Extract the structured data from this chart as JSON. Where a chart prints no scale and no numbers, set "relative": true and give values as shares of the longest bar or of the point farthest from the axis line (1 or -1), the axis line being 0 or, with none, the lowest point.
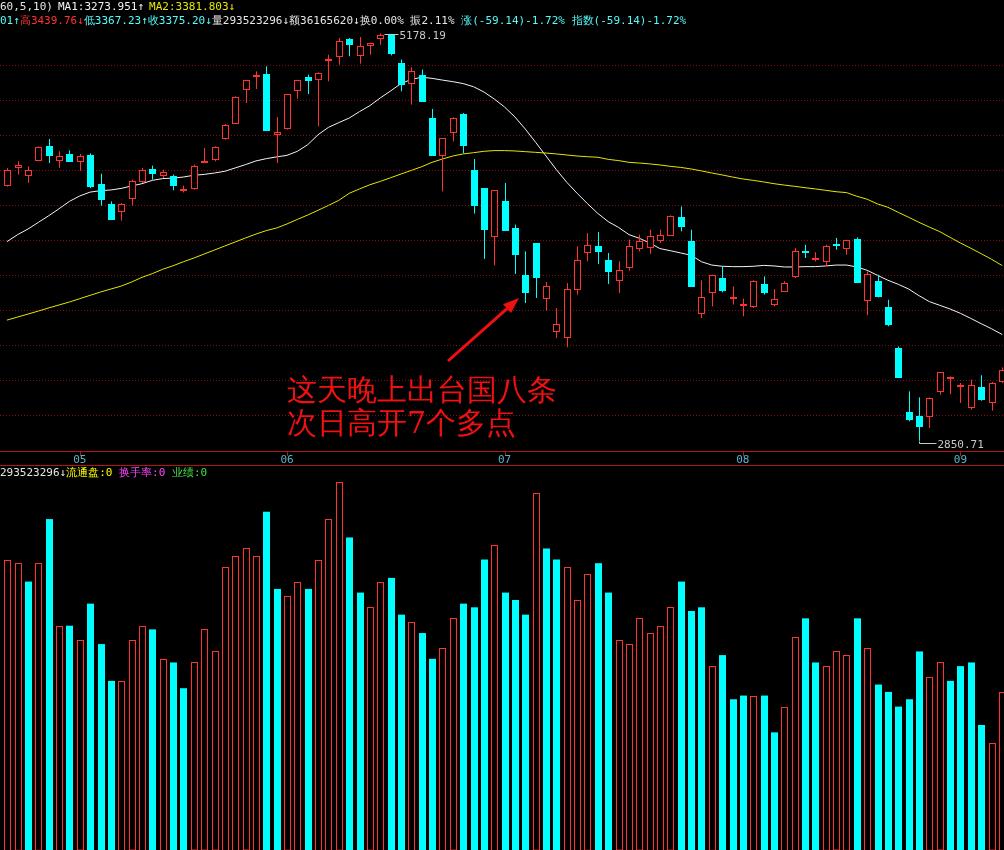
{
  "chart_data": [
    {
      "type": "candlestick",
      "legend_title": "60,5,10)",
      "subtitle": "01↑高3439.76↓低3367.23↑收3375.20↓量293523296↓额36165620↓换0.00% 振2.11% 涨(-59.14)-1.72% 指数(-59.14)-1.72%",
      "categories": [
        null,
        null,
        null,
        null,
        null,
        null,
        null,
        "05",
        null,
        null,
        null,
        null,
        null,
        null,
        null,
        null,
        null,
        null,
        null,
        null,
        null,
        null,
        null,
        null,
        null,
        null,
        null,
        "06",
        null,
        null,
        null,
        null,
        null,
        null,
        null,
        null,
        null,
        null,
        null,
        null,
        null,
        null,
        null,
        null,
        null,
        null,
        null,
        null,
        "07",
        null,
        null,
        null,
        null,
        null,
        null,
        null,
        null,
        null,
        null,
        null,
        null,
        null,
        null,
        null,
        null,
        null,
        null,
        null,
        null,
        null,
        null,
        "08",
        null,
        null,
        null,
        null,
        null,
        null,
        null,
        null,
        null,
        null,
        null,
        null,
        null,
        null,
        null,
        null,
        null,
        null,
        null,
        null,
        "09",
        null,
        null,
        null,
        null
      ],
      "ohlc": [
        [
          4314,
          4410,
          4303,
          4400
        ],
        [
          4418,
          4448,
          4372,
          4425
        ],
        [
          4368,
          4419,
          4324,
          4400
        ],
        [
          4453,
          4533,
          4451,
          4530
        ],
        [
          4533,
          4575,
          4438,
          4486
        ],
        [
          4453,
          4505,
          4410,
          4480
        ],
        [
          4490,
          4510,
          4448,
          4452
        ],
        [
          4448,
          4490,
          4394,
          4480
        ],
        [
          4484,
          4493,
          4295,
          4309
        ],
        [
          4318,
          4377,
          4194,
          4234
        ],
        [
          4206,
          4219,
          4112,
          4118
        ],
        [
          4162,
          4210,
          4109,
          4206
        ],
        [
          4238,
          4343,
          4194,
          4333
        ],
        [
          4333,
          4410,
          4324,
          4400
        ],
        [
          4406,
          4423,
          4343,
          4381
        ],
        [
          4371,
          4400,
          4352,
          4385
        ],
        [
          4366,
          4372,
          4282,
          4314
        ],
        [
          4286,
          4309,
          4270,
          4290
        ],
        [
          4293,
          4429,
          4286,
          4419
        ],
        [
          4442,
          4524,
          4442,
          4450
        ],
        [
          4461,
          4533,
          4448,
          4532
        ],
        [
          4581,
          4661,
          4571,
          4657
        ],
        [
          4667,
          4819,
          4661,
          4815
        ],
        [
          4861,
          4914,
          4781,
          4911
        ],
        [
          4933,
          4962,
          4861,
          4943
        ],
        [
          4947,
          4991,
          4625,
          4629
        ],
        [
          4606,
          4701,
          4438,
          4613
        ],
        [
          4638,
          4833,
          4629,
          4833
        ],
        [
          4853,
          4914,
          4806,
          4911
        ],
        [
          4929,
          4943,
          4832,
          4914
        ],
        [
          4920,
          4956,
          4648,
          4951
        ],
        [
          5024,
          5057,
          4905,
          5030
        ],
        [
          5052,
          5152,
          5000,
          5133
        ],
        [
          5147,
          5152,
          5048,
          5120
        ],
        [
          5054,
          5158,
          5006,
          5105
        ],
        [
          5114,
          5126,
          5057,
          5126
        ],
        [
          5152,
          5178.19,
          5114,
          5171
        ],
        [
          5175,
          5176,
          5053,
          5067
        ],
        [
          5010,
          5029,
          4848,
          4892
        ],
        [
          4895,
          4985,
          4772,
          4966
        ],
        [
          4943,
          4972,
          4787,
          4791
        ],
        [
          4695,
          4747,
          4482,
          4486
        ],
        [
          4486,
          4581,
          4276,
          4581
        ],
        [
          4615,
          4699,
          4562,
          4695
        ],
        [
          4718,
          4724,
          4495,
          4539
        ],
        [
          4400,
          4461,
          4149,
          4200
        ],
        [
          4295,
          4295,
          3890,
          4063
        ],
        [
          4019,
          4282,
          3853,
          4282
        ],
        [
          4219,
          4324,
          4051,
          4057
        ],
        [
          4066,
          4086,
          3804,
          3918
        ],
        [
          3796,
          3933,
          3638,
          3699
        ],
        [
          3981,
          3981,
          3667,
          3785
        ],
        [
          3667,
          3758,
          3594,
          3737
        ],
        [
          3480,
          3610,
          3438,
          3518
        ],
        [
          3442,
          3752,
          3385,
          3718
        ],
        [
          3720,
          3962,
          3686,
          3882
        ],
        [
          3930,
          4038,
          3876,
          3971
        ],
        [
          3962,
          4044,
          3861,
          3933
        ],
        [
          3882,
          3924,
          3747,
          3819
        ],
        [
          3768,
          3876,
          3695,
          3829
        ],
        [
          3842,
          4000,
          3823,
          3962
        ],
        [
          3952,
          4029,
          3933,
          3994
        ],
        [
          3956,
          4057,
          3918,
          4023
        ],
        [
          4000,
          4057,
          3981,
          4029
        ],
        [
          4029,
          4139,
          4025,
          4133
        ],
        [
          4130,
          4190,
          4048,
          4076
        ],
        [
          3990,
          4057,
          3733,
          3737
        ],
        [
          3581,
          3768,
          3552,
          3670
        ],
        [
          3699,
          3800,
          3619,
          3796
        ],
        [
          3781,
          3848,
          3699,
          3714
        ],
        [
          3664,
          3733,
          3629,
          3671
        ],
        [
          3627,
          3663,
          3562,
          3630
        ],
        [
          3623,
          3768,
          3610,
          3762
        ],
        [
          3749,
          3790,
          3686,
          3701
        ],
        [
          3632,
          3718,
          3619,
          3663
        ],
        [
          3705,
          3762,
          3701,
          3752
        ],
        [
          3790,
          3952,
          3781,
          3933
        ],
        [
          3937,
          3971,
          3895,
          3933
        ],
        [
          3892,
          3929,
          3876,
          3896
        ],
        [
          3876,
          3971,
          3848,
          3962
        ],
        [
          3976,
          4010,
          3943,
          3973
        ],
        [
          3952,
          4000,
          3914,
          3996
        ],
        [
          4004,
          4013,
          3752,
          3758
        ],
        [
          3657,
          3819,
          3568,
          3806
        ],
        [
          3762,
          3800,
          3670,
          3676
        ],
        [
          3615,
          3657,
          3505,
          3520
        ],
        [
          3381,
          3390,
          3209,
          3215
        ],
        [
          3013,
          3133,
          2962,
          2977
        ],
        [
          2994,
          3099,
          2850.71,
          2933
        ],
        [
          2990,
          3099,
          2924,
          3095
        ],
        [
          3137,
          3242,
          3114,
          3242
        ],
        [
          3210,
          3219,
          3118,
          3215
        ],
        [
          3168,
          3181,
          3067,
          3172
        ],
        [
          3042,
          3200,
          3029,
          3168
        ],
        [
          3156,
          3225,
          3080,
          3091
        ],
        [
          3072,
          3187,
          3023,
          3181
        ],
        [
          3190,
          3270,
          3181,
          3257
        ]
      ],
      "colors": [
        "#ff3232",
        "#ff3232",
        "#ff3232",
        "#ff3232",
        "#00ffff",
        "#ff3232",
        "#00ffff",
        "#ff3232",
        "#00ffff",
        "#00ffff",
        "#00ffff",
        "#ff3232",
        "#ff3232",
        "#ff3232",
        "#00ffff",
        "#ff3232",
        "#00ffff",
        "#ff3232",
        "#ff3232",
        "#ff3232",
        "#ff3232",
        "#ff3232",
        "#ff3232",
        "#ff3232",
        "#ff3232",
        "#00ffff",
        "#ff3232",
        "#ff3232",
        "#ff3232",
        "#00ffff",
        "#ff3232",
        "#ff3232",
        "#ff3232",
        "#00ffff",
        "#ff3232",
        "#ff3232",
        "#ff3232",
        "#00ffff",
        "#00ffff",
        "#ff3232",
        "#00ffff",
        "#00ffff",
        "#ff3232",
        "#ff3232",
        "#00ffff",
        "#00ffff",
        "#00ffff",
        "#ff3232",
        "#00ffff",
        "#00ffff",
        "#00ffff",
        "#00ffff",
        "#ff3232",
        "#ff3232",
        "#ff3232",
        "#ff3232",
        "#ff3232",
        "#00ffff",
        "#00ffff",
        "#ff3232",
        "#ff3232",
        "#ff3232",
        "#ff3232",
        "#ff3232",
        "#ff3232",
        "#00ffff",
        "#00ffff",
        "#ff3232",
        "#ff3232",
        "#00ffff",
        "#ff3232",
        "#ff3232",
        "#ff3232",
        "#00ffff",
        "#ff3232",
        "#ff3232",
        "#ff3232",
        "#00ffff",
        "#ff3232",
        "#ff3232",
        "#00ffff",
        "#ff3232",
        "#00ffff",
        "#ff3232",
        "#00ffff",
        "#00ffff",
        "#00ffff",
        "#00ffff",
        "#00ffff",
        "#ff3232",
        "#ff3232",
        "#ff3232",
        "#ff3232",
        "#ff3232",
        "#00ffff",
        "#ff3232",
        "#ff3232"
      ],
      "series": [
        {
          "name": "MA1:3273.951↑",
          "type": "line",
          "color": "#f2f2f2",
          "values": [
            3990,
            4029,
            4061,
            4099,
            4137,
            4177,
            4219,
            4250,
            4272,
            4280,
            4284,
            4293,
            4307,
            4320,
            4339,
            4349,
            4352,
            4358,
            4368,
            4373,
            4381,
            4391,
            4410,
            4429,
            4450,
            4463,
            4473,
            4482,
            4505,
            4543,
            4600,
            4642,
            4669,
            4695,
            4732,
            4766,
            4810,
            4850,
            4892,
            4916,
            4928,
            4922,
            4912,
            4903,
            4892,
            4874,
            4844,
            4804,
            4758,
            4701,
            4632,
            4556,
            4478,
            4400,
            4328,
            4265,
            4206,
            4150,
            4103,
            4070,
            4029,
            4008,
            3981,
            3949,
            3937,
            3924,
            3911,
            3874,
            3855,
            3848,
            3846,
            3846,
            3848,
            3853,
            3850,
            3844,
            3844,
            3846,
            3846,
            3850,
            3855,
            3855,
            3844,
            3825,
            3796,
            3768,
            3745,
            3718,
            3680,
            3646,
            3625,
            3604,
            3579,
            3550,
            3520,
            3491,
            3459
          ]
        },
        {
          "name": "MA2:3381.803↓",
          "type": "line",
          "color": "#e6e600",
          "values": [
            3541,
            3558,
            3575,
            3592,
            3610,
            3627,
            3644,
            3663,
            3682,
            3701,
            3718,
            3735,
            3758,
            3785,
            3806,
            3831,
            3851,
            3874,
            3895,
            3918,
            3941,
            3964,
            3987,
            4010,
            4032,
            4052,
            4067,
            4090,
            4116,
            4141,
            4168,
            4196,
            4225,
            4265,
            4290,
            4314,
            4333,
            4354,
            4375,
            4396,
            4417,
            4442,
            4461,
            4478,
            4490,
            4497,
            4505,
            4509,
            4509,
            4507,
            4503,
            4499,
            4495,
            4490,
            4484,
            4478,
            4474,
            4471,
            4459,
            4452,
            4442,
            4438,
            4433,
            4427,
            4419,
            4413,
            4404,
            4393,
            4381,
            4370,
            4358,
            4347,
            4339,
            4330,
            4320,
            4312,
            4305,
            4297,
            4290,
            4282,
            4274,
            4269,
            4248,
            4231,
            4204,
            4185,
            4156,
            4128,
            4099,
            4072,
            4046,
            4013,
            3981,
            3951,
            3920,
            3888,
            3853
          ]
        }
      ],
      "yticks": [
        {
          "value": 3000,
          "label": null
        },
        {
          "value": 3200,
          "label": null
        },
        {
          "value": 3400,
          "label": null
        },
        {
          "value": 3600,
          "label": null
        },
        {
          "value": 3800,
          "label": null
        },
        {
          "value": 4000,
          "label": null
        },
        {
          "value": 4200,
          "label": null
        },
        {
          "value": 4400,
          "label": null
        },
        {
          "value": 4600,
          "label": null
        },
        {
          "value": 4800,
          "label": null
        },
        {
          "value": 5000,
          "label": null
        }
      ],
      "grid": "y",
      "tick_labels": "x",
      "legend": "top left",
      "annotations": [
        "这天晚上出台国八条",
        "次日高开7个多点",
        "5178.19",
        "2850.71"
      ]
    },
    {
      "type": "bar",
      "title": "293523296↓流通盘:0 换手率:0 业绩:0",
      "categories": [
        null,
        null,
        null,
        null,
        null,
        null,
        null,
        null,
        null,
        null,
        null,
        null,
        null,
        null,
        null,
        null,
        null,
        null,
        null,
        null,
        null,
        null,
        null,
        null,
        null,
        null,
        null,
        null,
        null,
        null,
        null,
        null,
        null,
        null,
        null,
        null,
        null,
        null,
        null,
        null,
        null,
        null,
        null,
        null,
        null,
        null,
        null,
        null,
        null,
        null,
        null,
        null,
        null,
        null,
        null,
        null,
        null,
        null,
        null,
        null,
        null,
        null,
        null,
        null,
        null,
        null,
        null,
        null,
        null,
        null,
        null,
        null,
        null,
        null,
        null,
        null,
        null,
        null,
        null,
        null,
        null,
        null,
        null,
        null,
        null,
        null,
        null,
        null,
        null,
        null,
        null,
        null,
        null,
        null,
        null,
        null,
        null
      ],
      "relative": true,
      "series": [
        {
          "color": "#ff3232",
          "values": [
            0.79,
            0.78,
            null,
            0.78,
            null,
            0.61,
            null,
            0.57,
            null,
            null,
            null,
            0.46,
            0.57,
            0.61,
            null,
            0.52,
            null,
            null,
            0.51,
            0.6,
            0.54,
            0.77,
            0.8,
            0.82,
            0.8,
            null,
            null,
            0.69,
            0.73,
            null,
            0.79,
            0.9,
            1,
            null,
            null,
            0.66,
            0.73,
            null,
            null,
            0.62,
            null,
            null,
            0.55,
            0.63,
            null,
            null,
            null,
            0.83,
            null,
            null,
            null,
            0.97,
            null,
            null,
            0.77,
            0.68,
            0.75,
            null,
            null,
            0.57,
            0.56,
            0.63,
            0.59,
            0.61,
            0.66,
            null,
            null,
            null,
            0.5,
            null,
            null,
            null,
            0.42,
            null,
            null,
            0.39,
            0.58,
            null,
            null,
            0.5,
            0.54,
            0.53,
            null,
            0.55,
            null,
            null,
            null,
            null,
            null,
            0.47,
            0.51,
            null,
            null,
            null,
            null,
            0.29,
            0.43
          ]
        },
        {
          "color": "#00ffff",
          "values": [
            null,
            null,
            0.73,
            null,
            0.9,
            null,
            0.61,
            null,
            0.67,
            0.56,
            0.46,
            null,
            null,
            null,
            0.6,
            null,
            0.51,
            0.44,
            null,
            null,
            null,
            null,
            null,
            null,
            null,
            0.92,
            0.71,
            null,
            null,
            0.71,
            null,
            null,
            null,
            0.85,
            0.7,
            null,
            null,
            0.74,
            0.64,
            null,
            0.59,
            0.52,
            null,
            null,
            0.67,
            0.66,
            0.79,
            null,
            0.7,
            0.68,
            0.64,
            null,
            0.82,
            0.79,
            null,
            null,
            null,
            0.78,
            0.7,
            null,
            null,
            null,
            null,
            null,
            null,
            0.73,
            0.65,
            0.66,
            null,
            0.53,
            0.41,
            0.42,
            null,
            0.42,
            0.32,
            null,
            null,
            0.63,
            0.51,
            null,
            null,
            null,
            0.63,
            null,
            0.45,
            0.43,
            0.39,
            0.41,
            0.54,
            null,
            null,
            0.46,
            0.5,
            0.51,
            0.34,
            null,
            null
          ]
        }
      ]
    }
  ]
}
